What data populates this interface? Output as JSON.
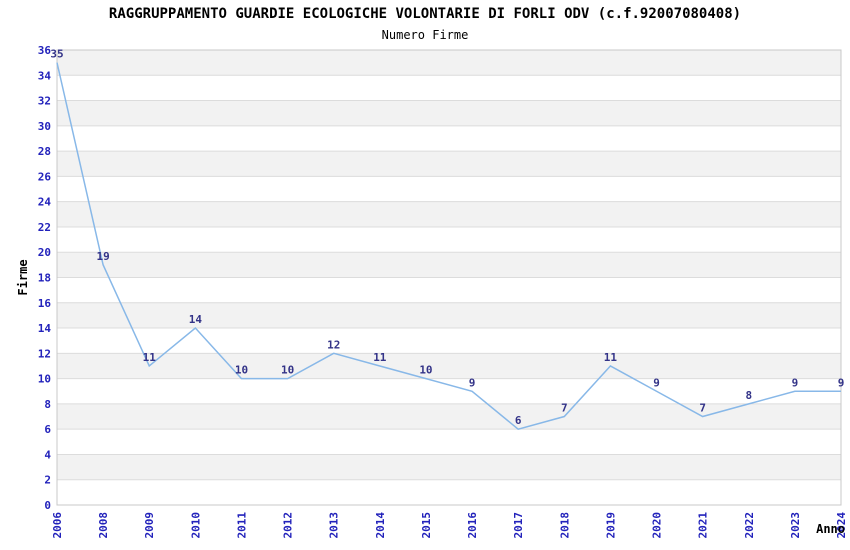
{
  "page": {
    "background": "#ffffff"
  },
  "chart_data": {
    "type": "line",
    "title": "RAGGRUPPAMENTO GUARDIE ECOLOGICHE VOLONTARIE DI FORLI ODV (c.f.92007080408)",
    "subtitle": "Numero Firme",
    "xlabel": "Anno",
    "ylabel": "Firme",
    "categories": [
      "2006",
      "2008",
      "2009",
      "2010",
      "2011",
      "2012",
      "2013",
      "2014",
      "2015",
      "2016",
      "2017",
      "2018",
      "2019",
      "2020",
      "2021",
      "2022",
      "2023",
      "2024"
    ],
    "values": [
      35,
      19,
      11,
      14,
      10,
      10,
      12,
      11,
      10,
      9,
      6,
      7,
      11,
      9,
      7,
      8,
      9,
      9
    ],
    "ylim": [
      0,
      36
    ],
    "ytick_step": 2,
    "grid": "horizontal-lines-with-alternating-bands",
    "legend": "none",
    "point_markers": false,
    "data_labels_shown": true,
    "x_tick_rotation_deg": -90,
    "colors": {
      "line": "#88B8E8",
      "tick_label": "#2222BB",
      "data_label": "#333388",
      "band": "#F2F2F2",
      "gridline": "#DCDCDC",
      "plot_border": "#C8C8C8",
      "title_text": "#000000"
    }
  }
}
